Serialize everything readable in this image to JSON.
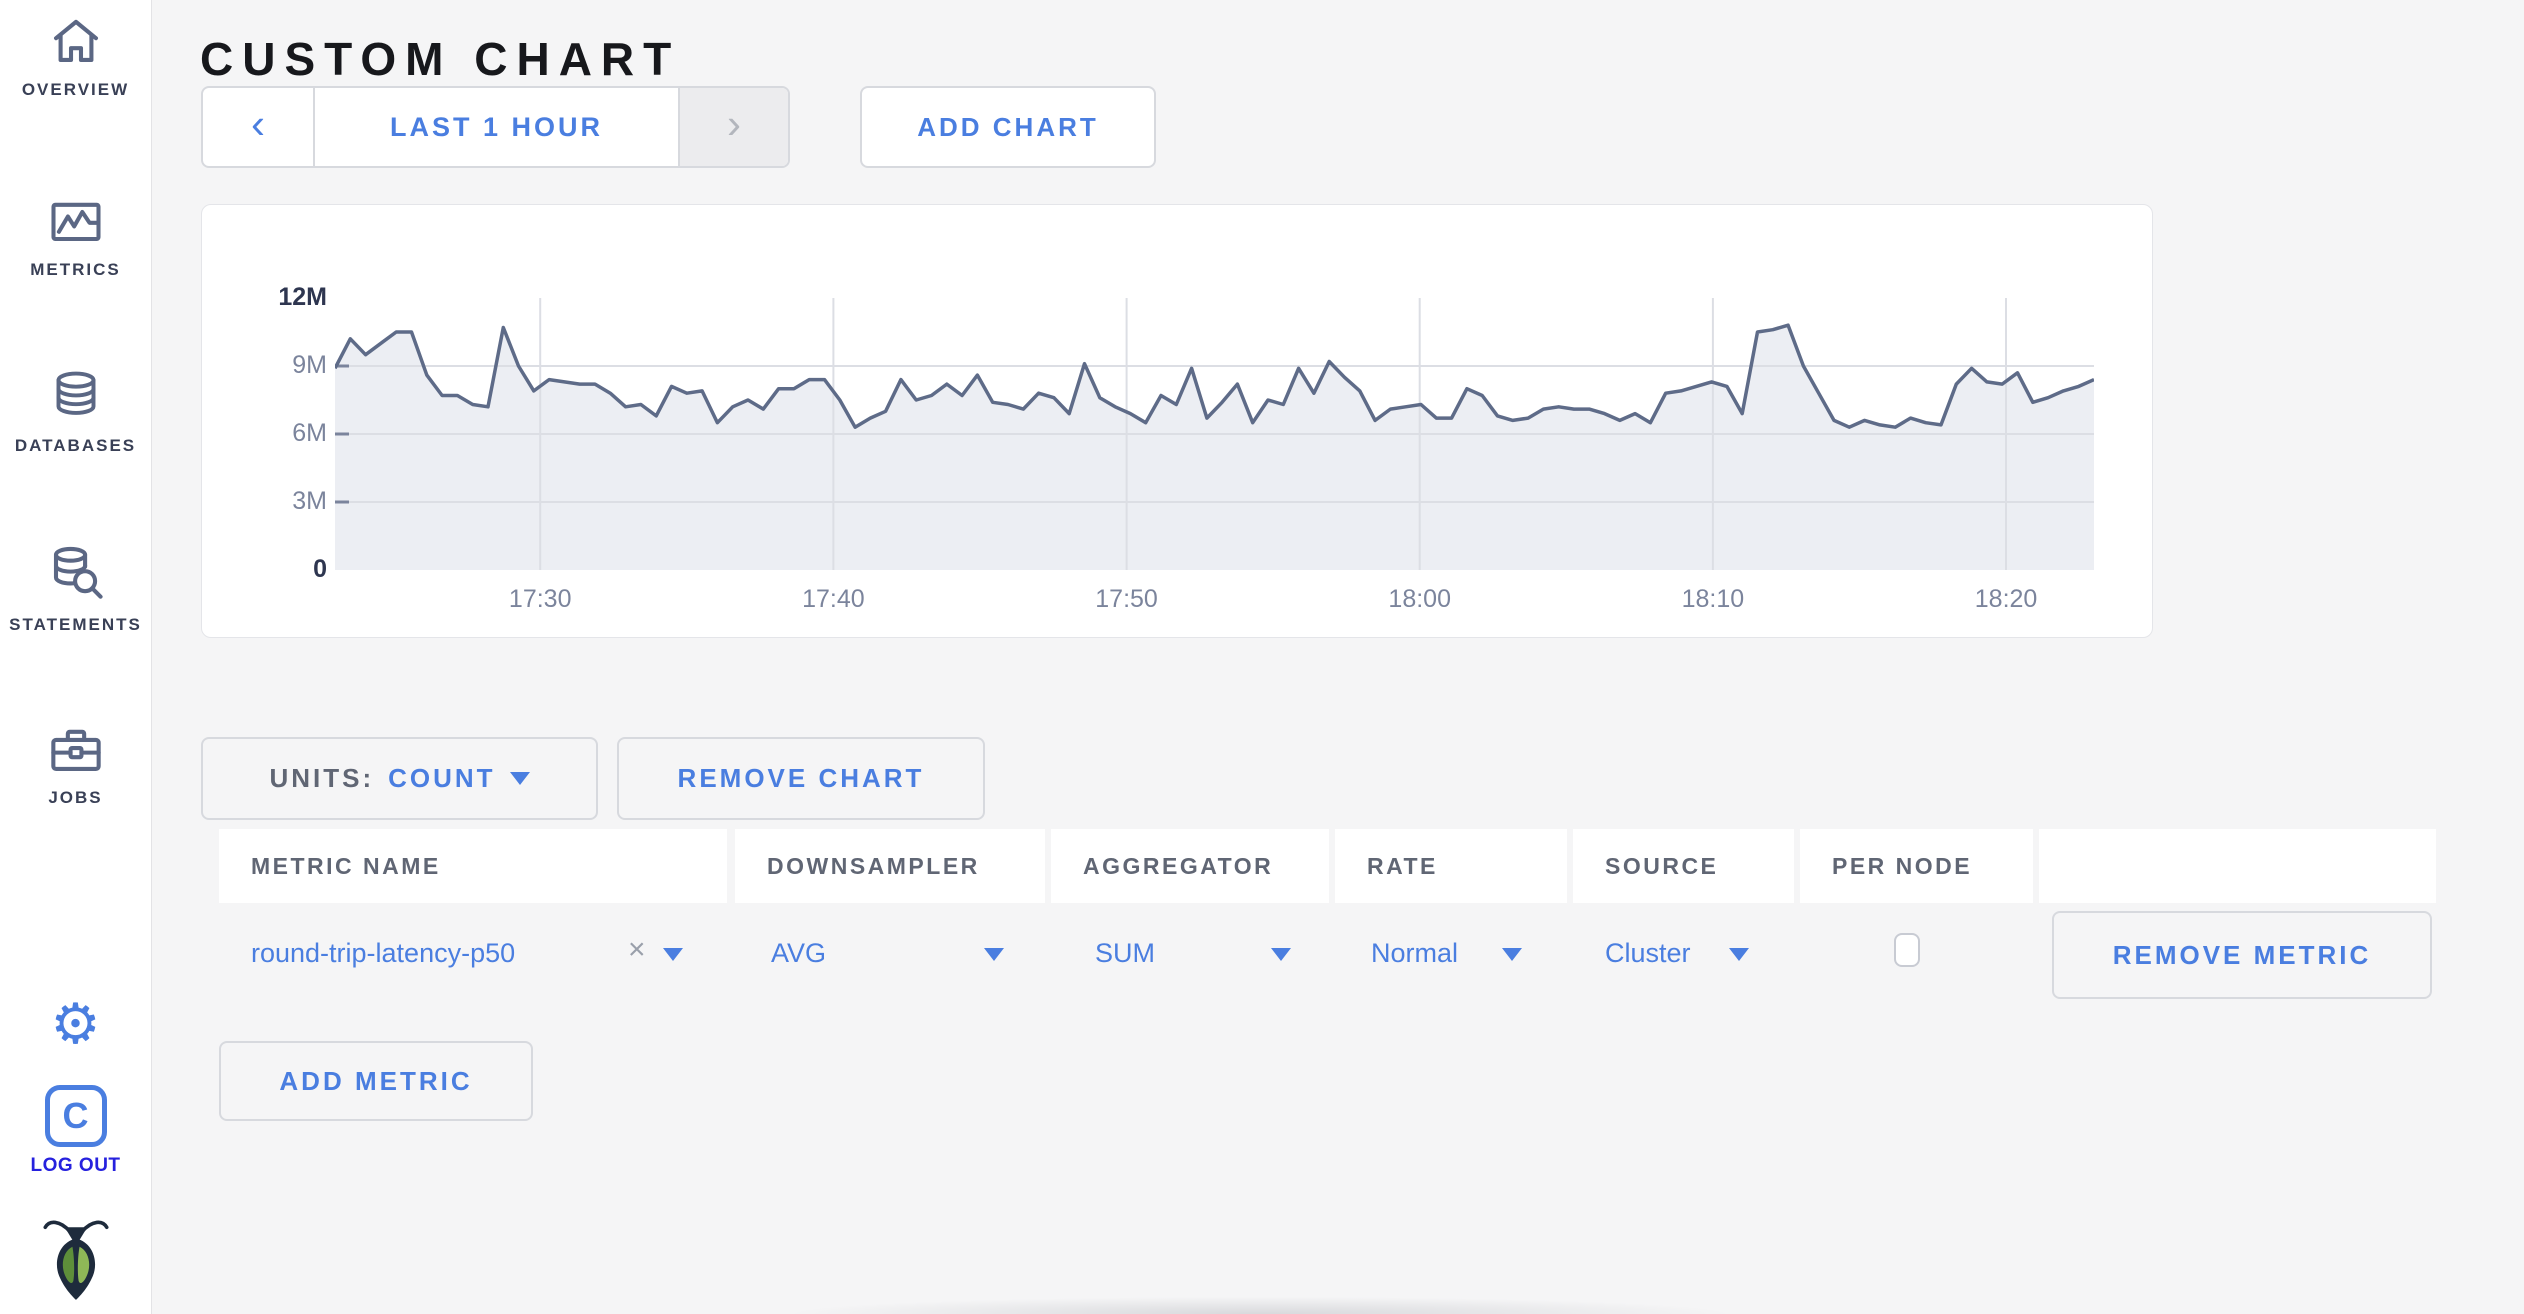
{
  "page": {
    "title": "CUSTOM CHART"
  },
  "sidebar": {
    "items": [
      {
        "label": "OVERVIEW",
        "icon": "home-icon"
      },
      {
        "label": "METRICS",
        "icon": "metrics-icon"
      },
      {
        "label": "DATABASES",
        "icon": "databases-icon"
      },
      {
        "label": "STATEMENTS",
        "icon": "statements-icon"
      },
      {
        "label": "JOBS",
        "icon": "jobs-icon"
      }
    ],
    "gear_glyph": "⚙",
    "logo_letter": "C",
    "logout_label": "LOG OUT"
  },
  "toolbar": {
    "prev_glyph": "‹",
    "time_range_label": "LAST 1 HOUR",
    "next_glyph": "›",
    "add_chart_label": "ADD CHART"
  },
  "chart_controls": {
    "units_label": "UNITS:",
    "units_value": "COUNT",
    "remove_chart_label": "REMOVE CHART",
    "add_metric_label": "ADD METRIC"
  },
  "metrics_table": {
    "headers": [
      "METRIC NAME",
      "DOWNSAMPLER",
      "AGGREGATOR",
      "RATE",
      "SOURCE",
      "PER NODE",
      ""
    ],
    "rows": [
      {
        "metric_name": "round-trip-latency-p50",
        "clear_glyph": "×",
        "downsampler": "AVG",
        "aggregator": "SUM",
        "rate": "Normal",
        "source": "Cluster",
        "per_node_checked": false,
        "remove_label": "REMOVE METRIC"
      }
    ]
  },
  "chart_data": {
    "type": "area",
    "title": "",
    "units": "count",
    "x_range": [
      "17:23",
      "18:23"
    ],
    "x_ticks": [
      "17:30",
      "17:40",
      "17:50",
      "18:00",
      "18:10",
      "18:20"
    ],
    "y_ticks": [
      {
        "value": 0,
        "label": "0"
      },
      {
        "value": 3,
        "label": "3M"
      },
      {
        "value": 6,
        "label": "6M"
      },
      {
        "value": 9,
        "label": "9M"
      },
      {
        "value": 12,
        "label": "12M"
      }
    ],
    "ylim": [
      0,
      12
    ],
    "value_unit": "millions",
    "values": [
      8.9,
      10.2,
      9.5,
      10.0,
      10.5,
      10.5,
      8.6,
      7.7,
      7.7,
      7.3,
      7.2,
      10.7,
      9.0,
      7.9,
      8.4,
      8.3,
      8.2,
      8.2,
      7.8,
      7.2,
      7.3,
      6.8,
      8.1,
      7.8,
      7.9,
      6.5,
      7.2,
      7.5,
      7.1,
      8.0,
      8.0,
      8.4,
      8.4,
      7.5,
      6.3,
      6.7,
      7.0,
      8.4,
      7.5,
      7.7,
      8.2,
      7.7,
      8.6,
      7.4,
      7.3,
      7.1,
      7.8,
      7.6,
      6.9,
      9.1,
      7.6,
      7.2,
      6.9,
      6.5,
      7.7,
      7.3,
      8.9,
      6.7,
      7.4,
      8.2,
      6.5,
      7.5,
      7.3,
      8.9,
      7.8,
      9.2,
      8.5,
      7.9,
      6.6,
      7.1,
      7.2,
      7.3,
      6.7,
      6.7,
      8.0,
      7.7,
      6.8,
      6.6,
      6.7,
      7.1,
      7.2,
      7.1,
      7.1,
      6.9,
      6.6,
      6.9,
      6.5,
      7.8,
      7.9,
      8.1,
      8.3,
      8.1,
      6.9,
      10.5,
      10.6,
      10.8,
      9.0,
      7.8,
      6.6,
      6.3,
      6.6,
      6.4,
      6.3,
      6.7,
      6.5,
      6.4,
      8.2,
      8.9,
      8.3,
      8.2,
      8.7,
      7.4,
      7.6,
      7.9,
      8.1,
      8.4
    ]
  },
  "colors": {
    "accent_blue": "#4a7ee0",
    "logout_blue": "#2621de",
    "sidebar_icon": "#5b6784",
    "sidebar_label": "#394056",
    "title_text": "#17181c",
    "muted_text": "#606674",
    "chart_line": "#5e6b88",
    "chart_fill": "#eceef3",
    "grid_line": "#dcdee4",
    "axis_dark": "#2e3650",
    "axis_gray": "#7b849c",
    "border": "#d7d9de",
    "panel_border": "#e4e5e9",
    "page_bg": "#f5f5f6",
    "bug_dark": "#1e2b3c",
    "wing_green_dark": "#5e8f3a",
    "wing_green_light": "#8fb857"
  }
}
